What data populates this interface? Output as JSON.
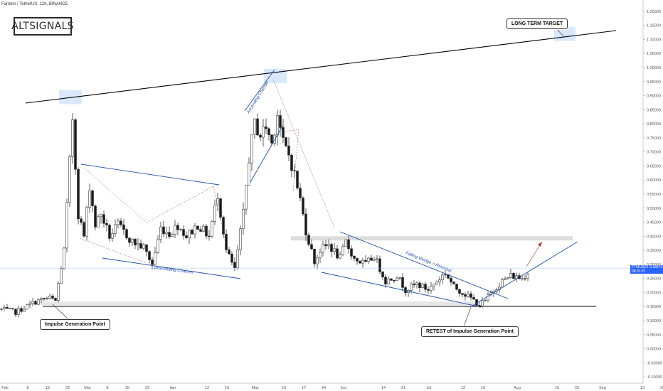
{
  "header": {
    "title": "Fantom / TetherUS, 12h, BINANCE"
  },
  "logo": {
    "text": "ALTSIGNALS"
  },
  "annotations": {
    "long_term_target": "LONG TERM TARGET",
    "impulse_point": "Impulse Generation Point",
    "retest": "RETEST of Impulse Generation Point",
    "descending_channel": "Descending Channel",
    "ascending_channel": "Ascending Channel",
    "falling_wedge": "Falling Wedge = Reversal"
  },
  "price_tag": {
    "symbol": "FTMUSDT",
    "price": "0.28675",
    "countdown": "08:31:37"
  },
  "colors": {
    "up_candle": "#1a1a1a",
    "down_candle": "#1a1a1a",
    "trendline": "#1f4fa8",
    "resistance": "#000000",
    "target_box": "#cfe4f7",
    "zone": "#dddddd",
    "price_line": "#9ec3f5",
    "price_tag_bg": "#2962ff",
    "projection_arrow": "#b33a3a"
  },
  "chart_data": {
    "type": "candlestick",
    "title": "Fantom / TetherUS, 12h, BINANCE",
    "ylim": [
      -0.12,
      1.22
    ],
    "y_ticks": [
      1.2,
      1.15,
      1.1,
      1.05,
      1.0,
      0.95,
      0.9,
      0.85,
      0.8,
      0.75,
      0.7,
      0.65,
      0.6,
      0.55,
      0.5,
      0.45,
      0.4,
      0.35,
      0.3,
      0.25,
      0.2,
      0.15,
      0.1,
      0.05,
      0.0,
      -0.05,
      -0.1
    ],
    "y_tick_labels": [
      "1.20000",
      "1.15000",
      "1.10000",
      "1.05000",
      "1.00000",
      "0.95000",
      "0.90000",
      "0.85000",
      "0.80000",
      "0.75000",
      "0.70000",
      "0.65000",
      "0.60000",
      "0.55000",
      "0.50000",
      "0.45000",
      "0.40000",
      "0.35000",
      "0.30000",
      "0.25000",
      "0.20000",
      "0.15000",
      "0.10000",
      "0.05000",
      "0.00000",
      "-0.05000",
      "-0.10000"
    ],
    "x_tick_labels": [
      "Feb",
      "8",
      "15",
      "22",
      "Mar",
      "8",
      "15",
      "22",
      "Apr",
      "12",
      "19",
      "May",
      "10",
      "17",
      "24",
      "Jun",
      "14",
      "21",
      "Jul",
      "12",
      "19",
      "Aug",
      "16",
      "23",
      "Sep",
      "13",
      "20"
    ],
    "x_tick_index": [
      0,
      16,
      30,
      44,
      58,
      72,
      86,
      100,
      118,
      142,
      156,
      176,
      196,
      210,
      224,
      238,
      266,
      280,
      298,
      322,
      336,
      360,
      388,
      402,
      420,
      448,
      462
    ],
    "last_price": 0.28675,
    "resistance_zone": [
      0.385,
      0.4
    ],
    "support_zone": [
      0.155,
      0.168
    ],
    "horizontal_support": 0.148,
    "waypoints": [
      [
        0,
        0.14
      ],
      [
        10,
        0.13
      ],
      [
        25,
        0.17
      ],
      [
        34,
        0.18
      ],
      [
        38,
        0.17
      ],
      [
        44,
        0.35
      ],
      [
        50,
        0.82
      ],
      [
        54,
        0.48
      ],
      [
        58,
        0.4
      ],
      [
        62,
        0.58
      ],
      [
        66,
        0.44
      ],
      [
        70,
        0.48
      ],
      [
        76,
        0.4
      ],
      [
        82,
        0.44
      ],
      [
        92,
        0.38
      ],
      [
        100,
        0.36
      ],
      [
        106,
        0.3
      ],
      [
        112,
        0.43
      ],
      [
        118,
        0.41
      ],
      [
        124,
        0.44
      ],
      [
        130,
        0.4
      ],
      [
        138,
        0.44
      ],
      [
        146,
        0.4
      ],
      [
        152,
        0.55
      ],
      [
        158,
        0.35
      ],
      [
        164,
        0.28
      ],
      [
        170,
        0.48
      ],
      [
        174,
        0.68
      ],
      [
        178,
        0.8
      ],
      [
        182,
        0.76
      ],
      [
        186,
        0.79
      ],
      [
        190,
        0.73
      ],
      [
        194,
        0.84
      ],
      [
        198,
        0.73
      ],
      [
        202,
        0.69
      ],
      [
        206,
        0.62
      ],
      [
        210,
        0.53
      ],
      [
        214,
        0.42
      ],
      [
        220,
        0.31
      ],
      [
        224,
        0.35
      ],
      [
        230,
        0.37
      ],
      [
        238,
        0.32
      ],
      [
        242,
        0.38
      ],
      [
        248,
        0.32
      ],
      [
        256,
        0.3
      ],
      [
        262,
        0.33
      ],
      [
        270,
        0.24
      ],
      [
        278,
        0.26
      ],
      [
        284,
        0.21
      ],
      [
        292,
        0.23
      ],
      [
        300,
        0.21
      ],
      [
        306,
        0.24
      ],
      [
        312,
        0.27
      ],
      [
        318,
        0.22
      ],
      [
        324,
        0.2
      ],
      [
        330,
        0.18
      ],
      [
        336,
        0.155
      ],
      [
        340,
        0.17
      ],
      [
        346,
        0.21
      ],
      [
        352,
        0.24
      ],
      [
        358,
        0.26
      ],
      [
        366,
        0.25
      ],
      [
        372,
        0.285
      ]
    ]
  }
}
